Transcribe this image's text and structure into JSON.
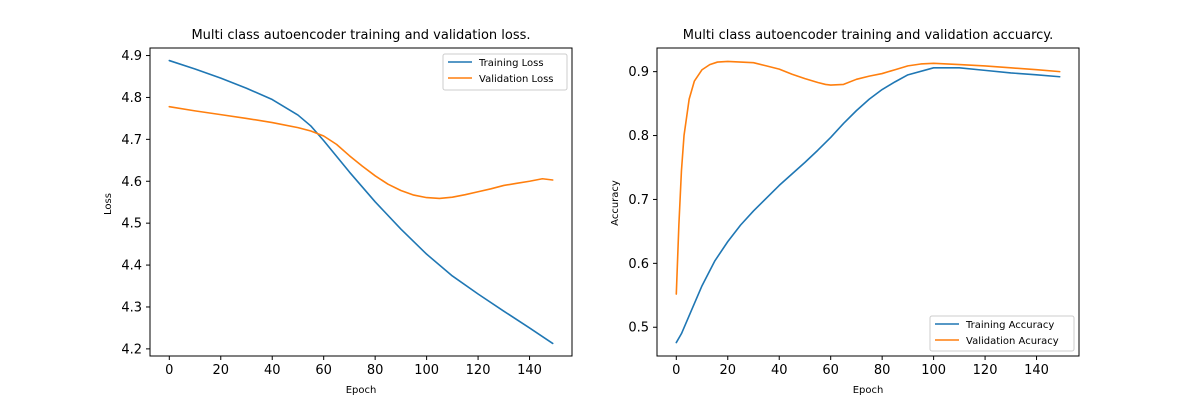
{
  "chart_data": [
    {
      "type": "line",
      "title": "Multi class autoencoder training and validation loss.",
      "xlabel": "Epoch",
      "ylabel": "Loss",
      "xlim": [
        -7.5,
        156.5
      ],
      "ylim": [
        4.183,
        4.918
      ],
      "xticks": [
        "0",
        "20",
        "40",
        "60",
        "80",
        "100",
        "120",
        "140"
      ],
      "yticks": [
        "4.2",
        "4.3",
        "4.4",
        "4.5",
        "4.6",
        "4.7",
        "4.8",
        "4.9"
      ],
      "grid": false,
      "legend_position": "upper right",
      "series": [
        {
          "name": "Training Loss",
          "color": "#1f77b4",
          "x": [
            0,
            10,
            20,
            30,
            40,
            50,
            55,
            60,
            70,
            80,
            90,
            100,
            110,
            120,
            130,
            140,
            149
          ],
          "y": [
            4.888,
            4.868,
            4.846,
            4.822,
            4.795,
            4.758,
            4.732,
            4.697,
            4.622,
            4.551,
            4.486,
            4.426,
            4.374,
            4.331,
            4.29,
            4.25,
            4.213
          ]
        },
        {
          "name": "Validation Loss",
          "color": "#ff7f0e",
          "x": [
            0,
            10,
            20,
            30,
            40,
            50,
            55,
            60,
            65,
            70,
            75,
            80,
            85,
            90,
            95,
            100,
            105,
            110,
            115,
            120,
            125,
            130,
            135,
            140,
            145,
            149
          ],
          "y": [
            4.778,
            4.768,
            4.759,
            4.75,
            4.74,
            4.728,
            4.72,
            4.708,
            4.688,
            4.661,
            4.636,
            4.613,
            4.593,
            4.578,
            4.567,
            4.561,
            4.559,
            4.562,
            4.568,
            4.575,
            4.582,
            4.59,
            4.595,
            4.6,
            4.606,
            4.603
          ]
        }
      ]
    },
    {
      "type": "line",
      "title": "Multi class autoencoder training and validation accuarcy.",
      "xlabel": "Epoch",
      "ylabel": "Accuracy",
      "xlim": [
        -7.5,
        156.5
      ],
      "ylim": [
        0.455,
        0.937
      ],
      "xticks": [
        "0",
        "20",
        "40",
        "60",
        "80",
        "100",
        "120",
        "140"
      ],
      "yticks": [
        "0.5",
        "0.6",
        "0.7",
        "0.8",
        "0.9"
      ],
      "grid": false,
      "legend_position": "lower right",
      "series": [
        {
          "name": "Training Accuracy",
          "color": "#1f77b4",
          "x": [
            0,
            2,
            5,
            10,
            15,
            20,
            25,
            30,
            40,
            50,
            55,
            60,
            65,
            70,
            75,
            80,
            85,
            90,
            100,
            110,
            120,
            130,
            140,
            149
          ],
          "y": [
            0.476,
            0.49,
            0.518,
            0.565,
            0.604,
            0.634,
            0.66,
            0.682,
            0.722,
            0.758,
            0.777,
            0.797,
            0.819,
            0.839,
            0.857,
            0.872,
            0.884,
            0.895,
            0.906,
            0.906,
            0.902,
            0.898,
            0.895,
            0.892
          ]
        },
        {
          "name": "Validation Acuracy",
          "color": "#ff7f0e",
          "x": [
            0,
            1,
            2,
            3,
            5,
            7,
            10,
            13,
            16,
            20,
            25,
            30,
            35,
            40,
            45,
            50,
            55,
            58,
            60,
            65,
            70,
            75,
            80,
            85,
            90,
            95,
            100,
            110,
            120,
            130,
            140,
            149
          ],
          "y": [
            0.552,
            0.66,
            0.745,
            0.8,
            0.857,
            0.885,
            0.903,
            0.911,
            0.915,
            0.916,
            0.915,
            0.914,
            0.909,
            0.904,
            0.896,
            0.889,
            0.883,
            0.88,
            0.879,
            0.88,
            0.888,
            0.893,
            0.897,
            0.903,
            0.909,
            0.912,
            0.913,
            0.911,
            0.909,
            0.906,
            0.903,
            0.9
          ]
        }
      ]
    }
  ]
}
